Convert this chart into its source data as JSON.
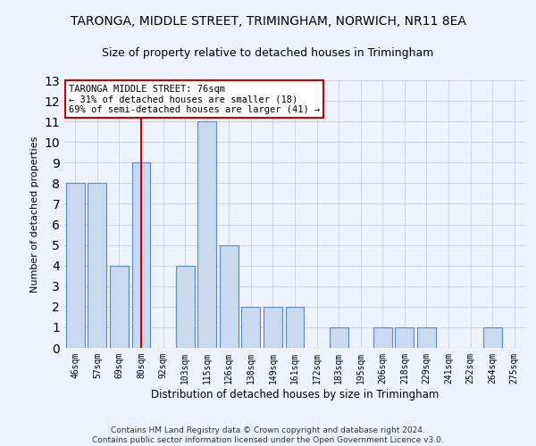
{
  "title": "TARONGA, MIDDLE STREET, TRIMINGHAM, NORWICH, NR11 8EA",
  "subtitle": "Size of property relative to detached houses in Trimingham",
  "xlabel": "Distribution of detached houses by size in Trimingham",
  "ylabel": "Number of detached properties",
  "bar_color": "#c8d9f0",
  "bar_edge_color": "#5b8ac8",
  "reference_line_color": "#cc0000",
  "categories": [
    "46sqm",
    "57sqm",
    "69sqm",
    "80sqm",
    "92sqm",
    "103sqm",
    "115sqm",
    "126sqm",
    "138sqm",
    "149sqm",
    "161sqm",
    "172sqm",
    "183sqm",
    "195sqm",
    "206sqm",
    "218sqm",
    "229sqm",
    "241sqm",
    "252sqm",
    "264sqm",
    "275sqm"
  ],
  "values": [
    8,
    8,
    4,
    9,
    0,
    4,
    11,
    5,
    2,
    2,
    2,
    0,
    1,
    0,
    1,
    1,
    1,
    0,
    0,
    1,
    0
  ],
  "reference_bar_index": 3,
  "annotation_text": "TARONGA MIDDLE STREET: 76sqm\n← 31% of detached houses are smaller (18)\n69% of semi-detached houses are larger (41) →",
  "footer_line1": "Contains HM Land Registry data © Crown copyright and database right 2024.",
  "footer_line2": "Contains public sector information licensed under the Open Government Licence v3.0.",
  "ylim": [
    0,
    13
  ],
  "background_color": "#eef2fb",
  "grid_color": "#c0c8e0"
}
